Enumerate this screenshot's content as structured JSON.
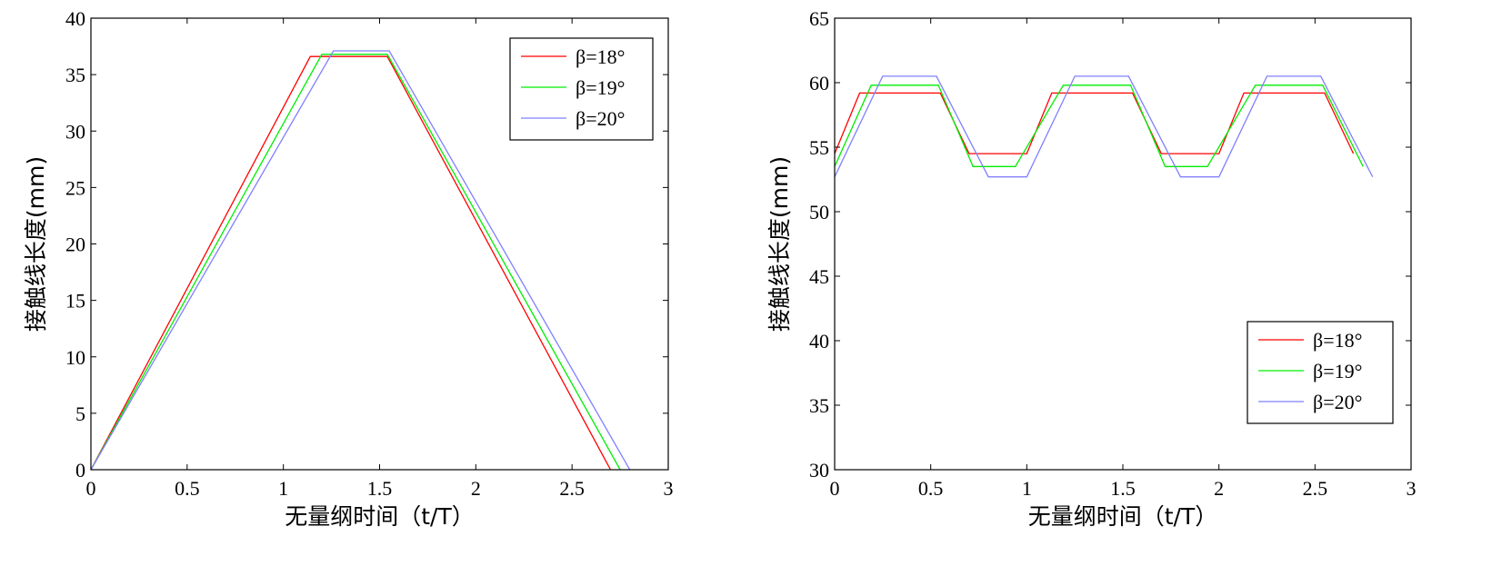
{
  "chart_data": [
    {
      "type": "line",
      "title": "",
      "xlabel": "无量纲时间（t/T）",
      "ylabel": "接触线长度(mm)",
      "xlim": [
        0,
        3
      ],
      "ylim": [
        0,
        40
      ],
      "xticks": [
        0,
        0.5,
        1,
        1.5,
        2,
        2.5,
        3
      ],
      "xtick_labels": [
        "0",
        "0.5",
        "1",
        "1.5",
        "2",
        "2.5",
        "3"
      ],
      "yticks": [
        0,
        5,
        10,
        15,
        20,
        25,
        30,
        35,
        40
      ],
      "ytick_labels": [
        "0",
        "5",
        "10",
        "15",
        "20",
        "25",
        "30",
        "35",
        "40"
      ],
      "grid": false,
      "legend_position": "top-right",
      "series": [
        {
          "name": "β=18°",
          "color": "#ff0000",
          "x": [
            0,
            1.14,
            1.54,
            2.7
          ],
          "y": [
            0,
            36.6,
            36.6,
            0
          ]
        },
        {
          "name": "β=19°",
          "color": "#00ee00",
          "x": [
            0,
            1.2,
            1.54,
            2.75
          ],
          "y": [
            0,
            36.8,
            36.8,
            0
          ]
        },
        {
          "name": "β=20°",
          "color": "#8080ff",
          "x": [
            0,
            1.26,
            1.55,
            2.8
          ],
          "y": [
            0,
            37.1,
            37.1,
            0
          ]
        }
      ]
    },
    {
      "type": "line",
      "title": "",
      "xlabel": "无量纲时间（t/T）",
      "ylabel": "接触线长度(mm)",
      "xlim": [
        0,
        3
      ],
      "ylim": [
        30,
        65
      ],
      "xticks": [
        0,
        0.5,
        1,
        1.5,
        2,
        2.5,
        3
      ],
      "xtick_labels": [
        "0",
        "0.5",
        "1",
        "1.5",
        "2",
        "2.5",
        "3"
      ],
      "yticks": [
        30,
        35,
        40,
        45,
        50,
        55,
        60,
        65
      ],
      "ytick_labels": [
        "30",
        "35",
        "40",
        "45",
        "50",
        "55",
        "60",
        "65"
      ],
      "grid": false,
      "legend_position": "bottom-right",
      "series": [
        {
          "name": "β=18°",
          "color": "#ff0000",
          "x": [
            0,
            0.13,
            0.55,
            0.7,
            1.0,
            1.13,
            1.55,
            1.7,
            2.0,
            2.13,
            2.55,
            2.7
          ],
          "y": [
            54.5,
            59.2,
            59.2,
            54.5,
            54.5,
            59.2,
            59.2,
            54.5,
            54.5,
            59.2,
            59.2,
            54.5
          ]
        },
        {
          "name": "β=19°",
          "color": "#00ee00",
          "x": [
            0,
            0.19,
            0.54,
            0.72,
            0.94,
            1.19,
            1.54,
            1.72,
            1.94,
            2.19,
            2.54,
            2.75
          ],
          "y": [
            53.5,
            59.8,
            59.8,
            53.5,
            53.5,
            59.8,
            59.8,
            53.5,
            53.5,
            59.8,
            59.8,
            53.5
          ]
        },
        {
          "name": "β=20°",
          "color": "#8080ff",
          "x": [
            0,
            0.25,
            0.53,
            0.8,
            1.0,
            1.25,
            1.53,
            1.8,
            2.0,
            2.25,
            2.53,
            2.8
          ],
          "y": [
            52.7,
            60.5,
            60.5,
            52.7,
            52.7,
            60.5,
            60.5,
            52.7,
            52.7,
            60.5,
            60.5,
            52.7
          ]
        }
      ]
    }
  ]
}
